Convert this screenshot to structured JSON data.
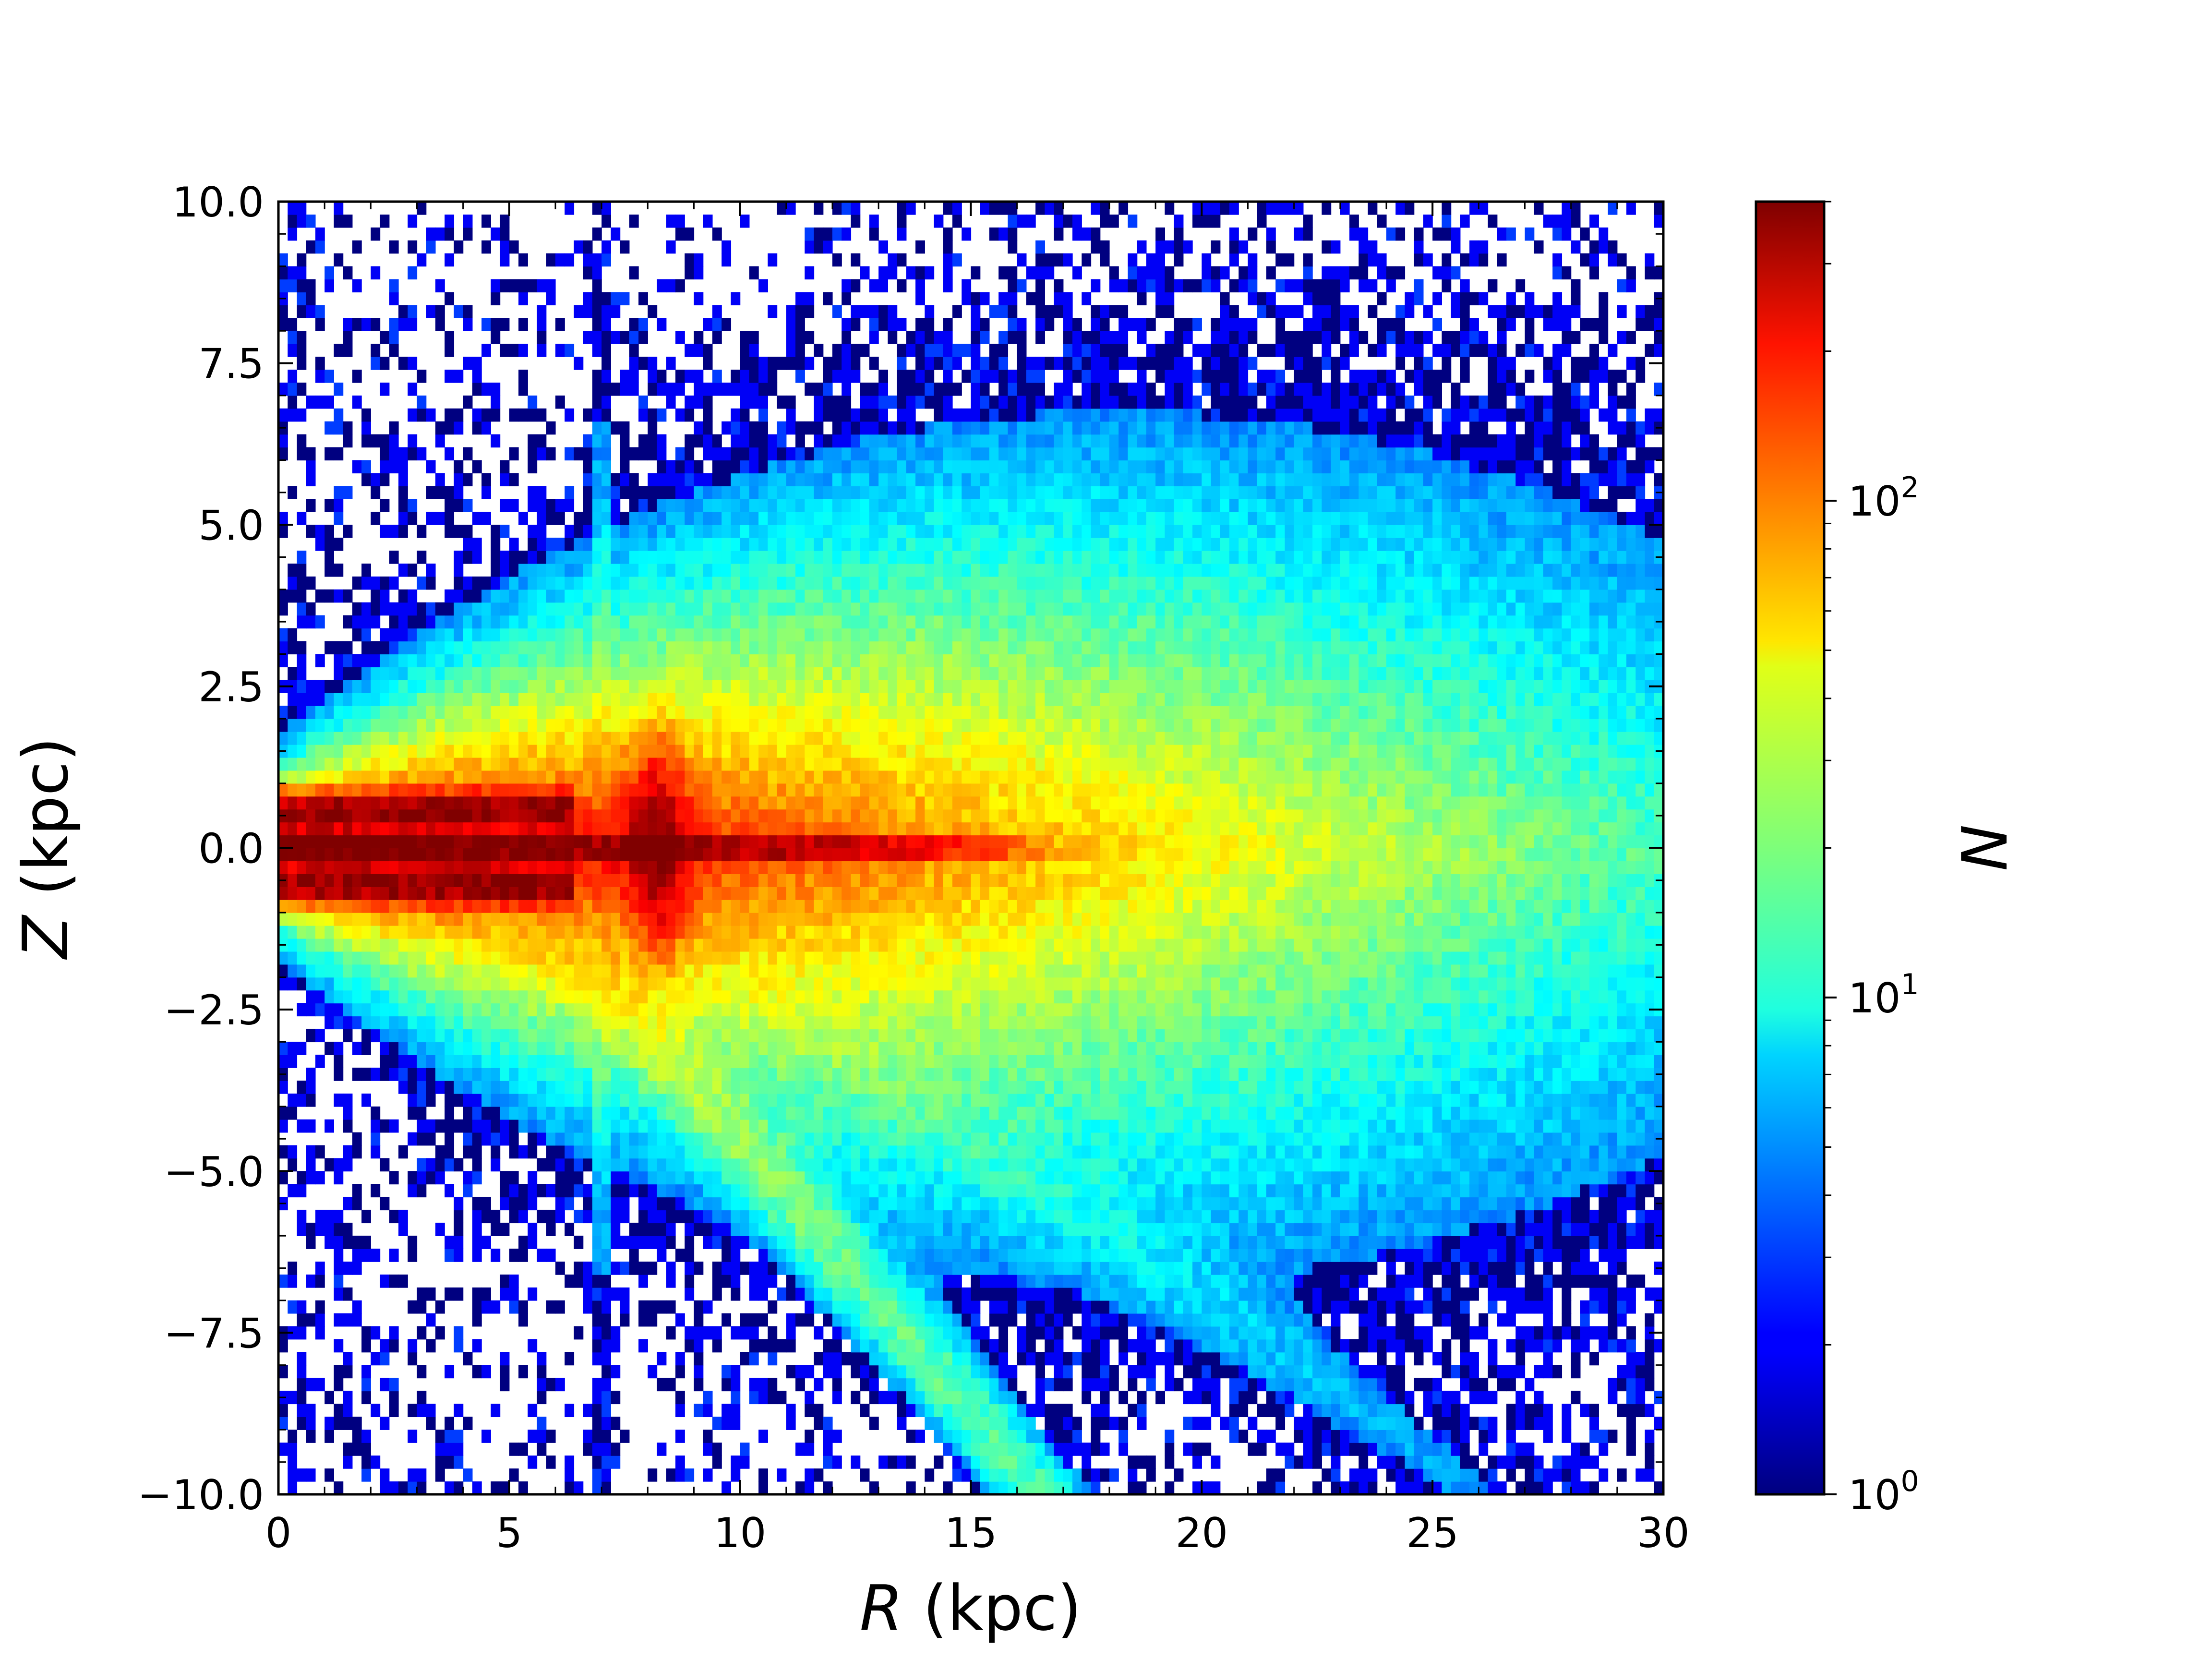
{
  "chart_data": {
    "type": "heatmap",
    "title": "",
    "xlabel_italic": "R",
    "xlabel_unit": " (kpc)",
    "ylabel_italic": "Z",
    "ylabel_unit": " (kpc)",
    "xlim": [
      0,
      30
    ],
    "ylim": [
      -10,
      10
    ],
    "x_ticks": [
      0,
      5,
      10,
      15,
      20,
      25,
      30
    ],
    "x_tick_labels": [
      "0",
      "5",
      "10",
      "15",
      "20",
      "25",
      "30"
    ],
    "y_ticks": [
      -10,
      -7.5,
      -5,
      -2.5,
      0,
      2.5,
      5,
      7.5,
      10
    ],
    "y_tick_labels": [
      "−10.0",
      "−7.5",
      "−5.0",
      "−2.5",
      "0.0",
      "2.5",
      "5.0",
      "7.5",
      "10.0"
    ],
    "colorbar": {
      "label": "N",
      "scale": "log",
      "range": [
        1,
        400
      ],
      "colormap": "jet",
      "ticks": [
        1,
        10,
        100
      ],
      "tick_labels": [
        {
          "base": "10",
          "exp": "0"
        },
        {
          "base": "10",
          "exp": "1"
        },
        {
          "base": "10",
          "exp": "2"
        }
      ]
    },
    "bins": {
      "nx": 150,
      "ny": 100,
      "x_bin_width_kpc": 0.2,
      "z_bin_width_kpc": 0.2
    },
    "features": [
      {
        "name": "thin disk ridge",
        "z": 0.0,
        "r_range": [
          0,
          17
        ],
        "peak_N": 400
      },
      {
        "name": "upper arc",
        "r_range": [
          0,
          6
        ],
        "z": 0.6,
        "N": 250
      },
      {
        "name": "lower arc",
        "r_range": [
          0,
          6
        ],
        "z": -0.6,
        "N": 250
      },
      {
        "name": "central concentration",
        "r": 8.2,
        "z_range": [
          -2,
          2
        ],
        "N": 300
      },
      {
        "name": "diagonal stream",
        "from": [
          7,
          -2
        ],
        "to": [
          16.5,
          -10
        ],
        "N": 12
      },
      {
        "name": "secondary stream",
        "from": [
          10,
          -2
        ],
        "to": [
          24,
          -9
        ],
        "N": 3
      },
      {
        "name": "vertical stripe",
        "r": 7.0,
        "z_range": [
          -10,
          10
        ],
        "N": 4
      }
    ]
  }
}
